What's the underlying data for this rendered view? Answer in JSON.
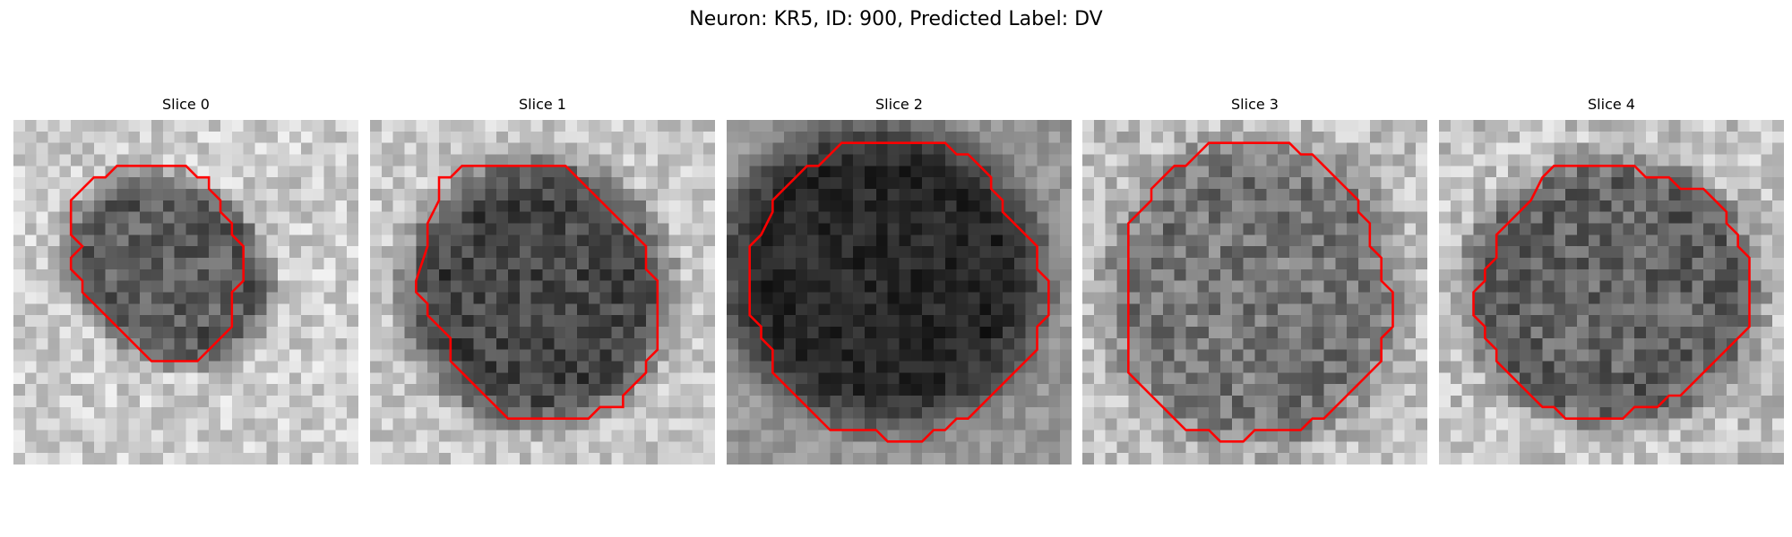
{
  "figure": {
    "title": "Neuron: KR5, ID: 900, Predicted Label: DV",
    "contour_color": "#ff0000"
  },
  "slices": [
    {
      "label": "Slice 0",
      "contour": [
        [
          10,
          4
        ],
        [
          15,
          4
        ],
        [
          16,
          5
        ],
        [
          17,
          5
        ],
        [
          17,
          6
        ],
        [
          18,
          7
        ],
        [
          18,
          8
        ],
        [
          19,
          9
        ],
        [
          19,
          10
        ],
        [
          20,
          11
        ],
        [
          20,
          14
        ],
        [
          19,
          15
        ],
        [
          19,
          18
        ],
        [
          18,
          19
        ],
        [
          17,
          20
        ],
        [
          16,
          21
        ],
        [
          12,
          21
        ],
        [
          11,
          20
        ],
        [
          10,
          19
        ],
        [
          9,
          18
        ],
        [
          8,
          17
        ],
        [
          7,
          16
        ],
        [
          6,
          15
        ],
        [
          6,
          14
        ],
        [
          5,
          13
        ],
        [
          5,
          12
        ],
        [
          6,
          11
        ],
        [
          5,
          10
        ],
        [
          5,
          7
        ],
        [
          6,
          6
        ],
        [
          7,
          5
        ],
        [
          8,
          5
        ],
        [
          9,
          4
        ]
      ]
    },
    {
      "label": "Slice 1",
      "contour": [
        [
          7,
          5
        ],
        [
          8,
          4
        ],
        [
          17,
          4
        ],
        [
          18,
          5
        ],
        [
          19,
          6
        ],
        [
          20,
          7
        ],
        [
          21,
          8
        ],
        [
          22,
          9
        ],
        [
          23,
          10
        ],
        [
          24,
          11
        ],
        [
          24,
          13
        ],
        [
          25,
          14
        ],
        [
          25,
          20
        ],
        [
          24,
          21
        ],
        [
          24,
          22
        ],
        [
          23,
          23
        ],
        [
          22,
          24
        ],
        [
          22,
          25
        ],
        [
          20,
          25
        ],
        [
          19,
          26
        ],
        [
          12,
          26
        ],
        [
          11,
          25
        ],
        [
          10,
          24
        ],
        [
          9,
          23
        ],
        [
          8,
          22
        ],
        [
          7,
          21
        ],
        [
          7,
          19
        ],
        [
          6,
          18
        ],
        [
          5,
          17
        ],
        [
          5,
          16
        ],
        [
          4,
          15
        ],
        [
          4,
          14
        ],
        [
          5,
          11
        ],
        [
          5,
          9
        ],
        [
          6,
          7
        ],
        [
          6,
          5
        ]
      ]
    },
    {
      "label": "Slice 2",
      "contour": [
        [
          10,
          2
        ],
        [
          19,
          2
        ],
        [
          20,
          3
        ],
        [
          21,
          3
        ],
        [
          22,
          4
        ],
        [
          23,
          5
        ],
        [
          23,
          6
        ],
        [
          24,
          7
        ],
        [
          24,
          8
        ],
        [
          25,
          9
        ],
        [
          26,
          10
        ],
        [
          27,
          11
        ],
        [
          27,
          13
        ],
        [
          28,
          14
        ],
        [
          28,
          17
        ],
        [
          27,
          18
        ],
        [
          27,
          20
        ],
        [
          26,
          21
        ],
        [
          25,
          22
        ],
        [
          24,
          23
        ],
        [
          23,
          24
        ],
        [
          22,
          25
        ],
        [
          21,
          26
        ],
        [
          20,
          26
        ],
        [
          19,
          27
        ],
        [
          18,
          27
        ],
        [
          17,
          28
        ],
        [
          14,
          28
        ],
        [
          13,
          27
        ],
        [
          9,
          27
        ],
        [
          8,
          26
        ],
        [
          7,
          25
        ],
        [
          6,
          24
        ],
        [
          5,
          23
        ],
        [
          4,
          22
        ],
        [
          4,
          20
        ],
        [
          3,
          19
        ],
        [
          3,
          18
        ],
        [
          2,
          17
        ],
        [
          2,
          11
        ],
        [
          3,
          10
        ],
        [
          4,
          8
        ],
        [
          4,
          7
        ],
        [
          5,
          6
        ],
        [
          6,
          5
        ],
        [
          7,
          4
        ],
        [
          8,
          4
        ],
        [
          9,
          3
        ]
      ]
    },
    {
      "label": "Slice 3",
      "contour": [
        [
          11,
          2
        ],
        [
          18,
          2
        ],
        [
          19,
          3
        ],
        [
          20,
          3
        ],
        [
          21,
          4
        ],
        [
          22,
          5
        ],
        [
          23,
          6
        ],
        [
          24,
          7
        ],
        [
          24,
          8
        ],
        [
          25,
          9
        ],
        [
          25,
          11
        ],
        [
          26,
          12
        ],
        [
          26,
          14
        ],
        [
          27,
          15
        ],
        [
          27,
          18
        ],
        [
          26,
          19
        ],
        [
          26,
          21
        ],
        [
          25,
          22
        ],
        [
          24,
          23
        ],
        [
          23,
          24
        ],
        [
          22,
          25
        ],
        [
          21,
          26
        ],
        [
          20,
          26
        ],
        [
          19,
          27
        ],
        [
          15,
          27
        ],
        [
          14,
          28
        ],
        [
          12,
          28
        ],
        [
          11,
          27
        ],
        [
          9,
          27
        ],
        [
          8,
          26
        ],
        [
          7,
          25
        ],
        [
          6,
          24
        ],
        [
          5,
          23
        ],
        [
          4,
          22
        ],
        [
          4,
          9
        ],
        [
          5,
          8
        ],
        [
          6,
          7
        ],
        [
          6,
          6
        ],
        [
          7,
          5
        ],
        [
          8,
          4
        ],
        [
          9,
          4
        ],
        [
          10,
          3
        ]
      ]
    },
    {
      "label": "Slice 4",
      "contour": [
        [
          10,
          4
        ],
        [
          17,
          4
        ],
        [
          18,
          5
        ],
        [
          20,
          5
        ],
        [
          21,
          6
        ],
        [
          23,
          6
        ],
        [
          24,
          7
        ],
        [
          25,
          8
        ],
        [
          25,
          9
        ],
        [
          26,
          10
        ],
        [
          26,
          11
        ],
        [
          27,
          12
        ],
        [
          27,
          18
        ],
        [
          26,
          19
        ],
        [
          25,
          20
        ],
        [
          24,
          21
        ],
        [
          23,
          22
        ],
        [
          22,
          23
        ],
        [
          21,
          24
        ],
        [
          20,
          24
        ],
        [
          19,
          25
        ],
        [
          17,
          25
        ],
        [
          16,
          26
        ],
        [
          11,
          26
        ],
        [
          10,
          25
        ],
        [
          9,
          25
        ],
        [
          8,
          24
        ],
        [
          7,
          23
        ],
        [
          6,
          22
        ],
        [
          5,
          21
        ],
        [
          5,
          20
        ],
        [
          4,
          19
        ],
        [
          4,
          18
        ],
        [
          3,
          17
        ],
        [
          3,
          15
        ],
        [
          4,
          14
        ],
        [
          4,
          13
        ],
        [
          5,
          12
        ],
        [
          5,
          10
        ],
        [
          6,
          9
        ],
        [
          7,
          8
        ],
        [
          8,
          7
        ],
        [
          9,
          5
        ]
      ]
    }
  ]
}
